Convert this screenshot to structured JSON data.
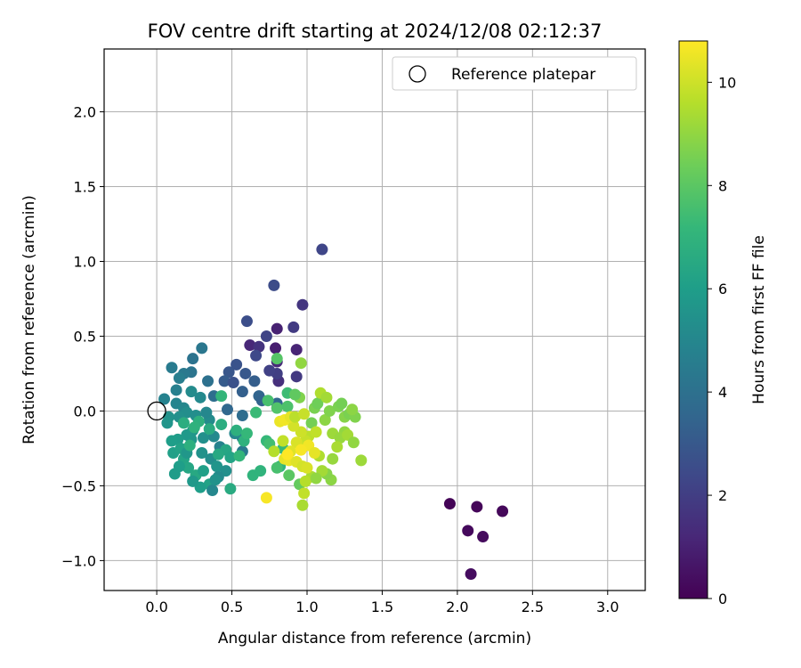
{
  "chart_data": {
    "type": "scatter",
    "title": "FOV centre drift starting at 2024/12/08 02:12:37",
    "xlabel": "Angular distance from reference (arcmin)",
    "ylabel": "Rotation from reference (arcmin)",
    "xlim": [
      -0.35,
      3.25
    ],
    "ylim": [
      -1.2,
      2.42
    ],
    "xticks": [
      0.0,
      0.5,
      1.0,
      1.5,
      2.0,
      2.5,
      3.0
    ],
    "xtick_labels": [
      "0.0",
      "0.5",
      "1.0",
      "1.5",
      "2.0",
      "2.5",
      "3.0"
    ],
    "yticks": [
      -1.0,
      -0.5,
      0.0,
      0.5,
      1.0,
      1.5,
      2.0
    ],
    "ytick_labels": [
      "−1.0",
      "−0.5",
      "0.0",
      "0.5",
      "1.0",
      "1.5",
      "2.0"
    ],
    "grid": true,
    "legend": {
      "position": "top-right",
      "entries": [
        "Reference platepar"
      ]
    },
    "colorbar": {
      "label": "Hours from first FF file",
      "colormap": "viridis",
      "range": [
        0,
        10.8
      ],
      "ticks": [
        0,
        2,
        4,
        6,
        8,
        10
      ],
      "tick_labels": [
        "0",
        "2",
        "4",
        "6",
        "8",
        "10"
      ],
      "stops": [
        "#440154",
        "#482878",
        "#3e4989",
        "#31688e",
        "#26828e",
        "#1f9e89",
        "#35b779",
        "#6ece58",
        "#b5de2b",
        "#fde725"
      ]
    },
    "reference_point": {
      "x": 0.0,
      "y": 0.0,
      "label": "Reference platepar"
    },
    "series": [
      {
        "points": [
          [
            1.95,
            -0.62,
            0.1
          ],
          [
            2.13,
            -0.64,
            0.15
          ],
          [
            2.3,
            -0.67,
            0.2
          ],
          [
            2.07,
            -0.8,
            0.25
          ],
          [
            2.17,
            -0.84,
            0.3
          ],
          [
            2.09,
            -1.09,
            0.35
          ],
          [
            0.62,
            0.44,
            1.2
          ],
          [
            0.8,
            0.55,
            1.0
          ],
          [
            0.93,
            0.41,
            1.1
          ],
          [
            0.79,
            0.42,
            0.9
          ],
          [
            0.8,
            0.33,
            1.3
          ],
          [
            0.81,
            0.2,
            1.5
          ],
          [
            0.68,
            0.43,
            1.6
          ],
          [
            1.1,
            1.08,
            2.3
          ],
          [
            0.78,
            0.84,
            2.5
          ],
          [
            0.97,
            0.71,
            1.7
          ],
          [
            0.6,
            0.6,
            2.6
          ],
          [
            0.91,
            0.56,
            1.9
          ],
          [
            0.73,
            0.5,
            2.2
          ],
          [
            0.66,
            0.37,
            2.4
          ],
          [
            0.53,
            0.31,
            2.8
          ],
          [
            0.48,
            0.26,
            2.9
          ],
          [
            0.45,
            0.2,
            3.1
          ],
          [
            0.59,
            0.25,
            3.0
          ],
          [
            0.65,
            0.2,
            3.2
          ],
          [
            0.57,
            0.13,
            3.3
          ],
          [
            0.51,
            0.19,
            2.7
          ],
          [
            0.8,
            0.25,
            2.0
          ],
          [
            0.93,
            0.23,
            1.8
          ],
          [
            0.75,
            0.27,
            2.1
          ],
          [
            0.68,
            0.1,
            3.5
          ],
          [
            0.7,
            0.07,
            3.4
          ],
          [
            0.8,
            0.05,
            3.6
          ],
          [
            0.47,
            0.01,
            3.6
          ],
          [
            0.57,
            -0.03,
            3.8
          ],
          [
            0.38,
            0.1,
            3.9
          ],
          [
            0.34,
            0.2,
            4.0
          ],
          [
            0.24,
            0.35,
            4.1
          ],
          [
            0.3,
            0.42,
            4.3
          ],
          [
            0.23,
            0.26,
            4.2
          ],
          [
            0.18,
            0.25,
            4.4
          ],
          [
            0.1,
            0.29,
            4.5
          ],
          [
            0.15,
            0.22,
            4.6
          ],
          [
            0.13,
            0.14,
            4.7
          ],
          [
            0.05,
            0.08,
            4.8
          ],
          [
            0.13,
            0.05,
            4.9
          ],
          [
            0.18,
            0.02,
            5.0
          ],
          [
            0.29,
            0.09,
            5.1
          ],
          [
            0.23,
            0.13,
            5.2
          ],
          [
            0.2,
            -0.01,
            5.3
          ],
          [
            0.15,
            -0.04,
            5.4
          ],
          [
            0.08,
            -0.04,
            5.5
          ],
          [
            0.07,
            -0.08,
            5.6
          ],
          [
            0.26,
            -0.03,
            5.3
          ],
          [
            0.35,
            -0.06,
            5.2
          ],
          [
            0.33,
            -0.01,
            5.0
          ],
          [
            0.57,
            -0.18,
            4.6
          ],
          [
            0.57,
            -0.27,
            4.4
          ],
          [
            0.52,
            -0.15,
            5.0
          ],
          [
            0.42,
            -0.24,
            4.8
          ],
          [
            0.38,
            -0.17,
            5.1
          ],
          [
            0.31,
            -0.18,
            5.4
          ],
          [
            0.24,
            -0.13,
            5.6
          ],
          [
            0.23,
            -0.19,
            5.7
          ],
          [
            0.2,
            -0.16,
            5.8
          ],
          [
            0.14,
            -0.19,
            5.9
          ],
          [
            0.1,
            -0.2,
            6.0
          ],
          [
            0.11,
            -0.28,
            6.1
          ],
          [
            0.16,
            -0.25,
            6.2
          ],
          [
            0.18,
            -0.32,
            6.3
          ],
          [
            0.21,
            -0.38,
            6.4
          ],
          [
            0.26,
            -0.43,
            6.5
          ],
          [
            0.15,
            -0.37,
            6.0
          ],
          [
            0.12,
            -0.42,
            5.9
          ],
          [
            0.31,
            -0.4,
            6.1
          ],
          [
            0.35,
            -0.49,
            6.2
          ],
          [
            0.29,
            -0.51,
            6.0
          ],
          [
            0.24,
            -0.47,
            5.8
          ],
          [
            0.2,
            -0.28,
            5.7
          ],
          [
            0.3,
            -0.28,
            5.5
          ],
          [
            0.36,
            -0.32,
            5.3
          ],
          [
            0.4,
            -0.37,
            5.6
          ],
          [
            0.46,
            -0.4,
            5.4
          ],
          [
            0.41,
            -0.44,
            5.2
          ],
          [
            0.37,
            -0.53,
            5.0
          ],
          [
            0.39,
            -0.46,
            5.5
          ],
          [
            0.46,
            -0.26,
            6.4
          ],
          [
            0.49,
            -0.31,
            6.3
          ],
          [
            0.41,
            -0.29,
            6.5
          ],
          [
            0.35,
            -0.12,
            6.6
          ],
          [
            0.43,
            -0.09,
            6.7
          ],
          [
            0.28,
            -0.07,
            6.8
          ],
          [
            0.25,
            -0.11,
            6.9
          ],
          [
            0.18,
            -0.08,
            6.7
          ],
          [
            0.22,
            -0.23,
            6.8
          ],
          [
            0.49,
            -0.52,
            6.6
          ],
          [
            0.53,
            -0.13,
            6.8
          ],
          [
            0.58,
            -0.2,
            6.9
          ],
          [
            0.6,
            -0.15,
            7.2
          ],
          [
            0.64,
            -0.43,
            7.0
          ],
          [
            0.69,
            -0.4,
            7.0
          ],
          [
            0.55,
            -0.3,
            7.1
          ],
          [
            0.43,
            0.1,
            7.1
          ],
          [
            0.66,
            -0.01,
            7.3
          ],
          [
            0.73,
            -0.2,
            7.2
          ],
          [
            0.75,
            -0.22,
            7.5
          ],
          [
            0.84,
            -0.25,
            7.2
          ],
          [
            0.82,
            -0.37,
            7.0
          ],
          [
            0.74,
            0.07,
            7.6
          ],
          [
            0.8,
            0.02,
            7.8
          ],
          [
            0.87,
            0.03,
            7.7
          ],
          [
            0.87,
            0.12,
            7.4
          ],
          [
            0.8,
            0.35,
            7.9
          ],
          [
            0.8,
            -0.38,
            7.6
          ],
          [
            0.88,
            -0.43,
            8.0
          ],
          [
            0.95,
            -0.49,
            8.2
          ],
          [
            1.03,
            -0.08,
            8.5
          ],
          [
            1.05,
            0.02,
            8.6
          ],
          [
            1.1,
            0.1,
            8.8
          ],
          [
            1.07,
            0.05,
            8.4
          ],
          [
            0.95,
            0.09,
            8.7
          ],
          [
            0.92,
            0.11,
            8.1
          ],
          [
            0.96,
            0.32,
            9.0
          ],
          [
            1.12,
            -0.06,
            8.9
          ],
          [
            1.15,
            0.0,
            8.7
          ],
          [
            1.21,
            0.03,
            8.6
          ],
          [
            1.23,
            0.05,
            8.5
          ],
          [
            1.25,
            -0.04,
            8.8
          ],
          [
            1.28,
            -0.02,
            8.6
          ],
          [
            1.32,
            -0.04,
            8.7
          ],
          [
            1.3,
            0.01,
            8.9
          ],
          [
            1.25,
            -0.14,
            9.0
          ],
          [
            1.17,
            -0.15,
            9.2
          ],
          [
            1.22,
            -0.18,
            9.1
          ],
          [
            1.27,
            -0.16,
            9.3
          ],
          [
            1.31,
            -0.21,
            9.0
          ],
          [
            1.36,
            -0.33,
            9.2
          ],
          [
            1.2,
            -0.24,
            9.4
          ],
          [
            1.17,
            -0.32,
            9.1
          ],
          [
            1.16,
            -0.46,
            8.9
          ],
          [
            1.13,
            -0.42,
            8.8
          ],
          [
            1.1,
            -0.4,
            9.3
          ],
          [
            1.08,
            -0.3,
            9.5
          ],
          [
            1.03,
            -0.44,
            9.4
          ],
          [
            0.99,
            -0.47,
            9.6
          ],
          [
            0.98,
            -0.55,
            9.8
          ],
          [
            0.97,
            -0.63,
            9.4
          ],
          [
            1.06,
            -0.45,
            9.0
          ],
          [
            1.09,
            0.12,
            9.5
          ],
          [
            1.13,
            0.09,
            9.3
          ],
          [
            1.01,
            -0.17,
            9.7
          ],
          [
            1.06,
            -0.14,
            9.8
          ],
          [
            0.99,
            -0.2,
            9.9
          ],
          [
            0.96,
            -0.14,
            10.0
          ],
          [
            0.91,
            -0.1,
            10.1
          ],
          [
            0.93,
            -0.21,
            10.2
          ],
          [
            0.89,
            -0.27,
            10.3
          ],
          [
            0.85,
            -0.32,
            10.4
          ],
          [
            0.88,
            -0.33,
            10.5
          ],
          [
            0.93,
            -0.34,
            10.3
          ],
          [
            0.97,
            -0.37,
            10.1
          ],
          [
            1.0,
            -0.38,
            10.2
          ],
          [
            1.01,
            -0.23,
            10.6
          ],
          [
            0.96,
            -0.26,
            10.7
          ],
          [
            1.05,
            -0.28,
            10.4
          ],
          [
            0.82,
            -0.07,
            10.5
          ],
          [
            0.85,
            -0.06,
            10.6
          ],
          [
            0.89,
            -0.04,
            10.4
          ],
          [
            0.87,
            -0.29,
            10.8
          ],
          [
            0.73,
            -0.58,
            10.7
          ],
          [
            0.78,
            -0.27,
            9.6
          ],
          [
            0.84,
            -0.2,
            9.8
          ],
          [
            0.92,
            -0.04,
            9.7
          ],
          [
            0.98,
            -0.02,
            9.9
          ]
        ]
      }
    ]
  }
}
